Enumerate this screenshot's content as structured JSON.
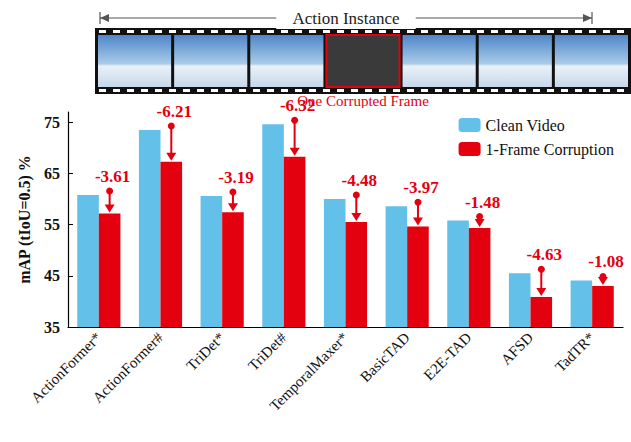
{
  "chart_data": {
    "type": "bar",
    "annotations": {
      "span": "Action Instance",
      "corrupted_frame": "One Corrupted Frame"
    },
    "y_label": "mAP (tIoU=0.5) %",
    "categories": [
      "ActionFormer*",
      "ActionFormer#",
      "TriDet*",
      "TriDet#",
      "TemporalMaxer*",
      "BasicTAD",
      "E2E-TAD",
      "AFSD",
      "TadTR*"
    ],
    "series": [
      {
        "name": "Clean Video",
        "color": "#63c0e8",
        "values": [
          60.8,
          73.5,
          60.6,
          74.6,
          60.0,
          58.6,
          55.8,
          45.5,
          44.1
        ]
      },
      {
        "name": "1-Frame Corruption",
        "color": "#e3000f",
        "values": [
          57.19,
          67.29,
          57.41,
          68.28,
          55.52,
          54.63,
          54.32,
          40.87,
          43.02
        ],
        "changes": [
          -3.61,
          -6.21,
          -3.19,
          -6.32,
          -4.48,
          -3.97,
          -1.48,
          -4.63,
          -1.08
        ]
      }
    ],
    "ylim": [
      35,
      77
    ],
    "yticks": [
      35,
      45,
      55,
      65,
      75
    ],
    "legend": "upper right",
    "grid": false
  }
}
